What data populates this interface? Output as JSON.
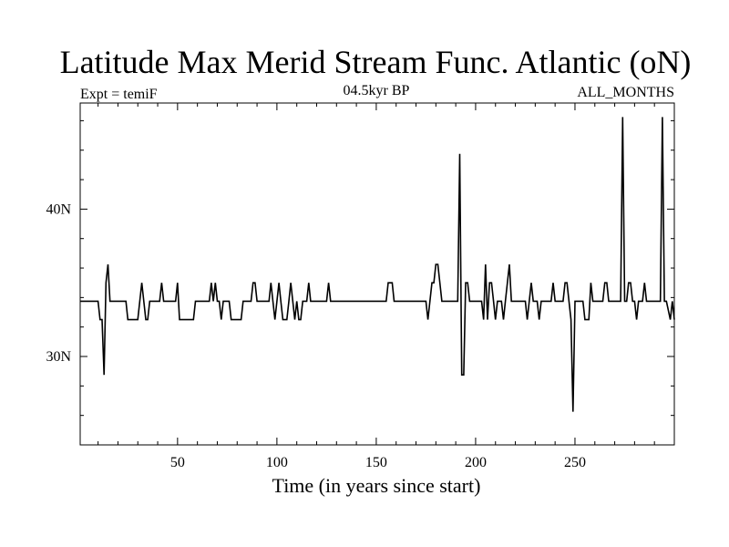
{
  "chart_data": {
    "type": "line",
    "title": "Latitude Max Merid Stream Func. Atlantic (oN)",
    "subtitle_left": "Expt = temiF",
    "subtitle_center": "04.5kyr BP",
    "subtitle_right": "ALL_MONTHS",
    "xlabel": "Time (in years since start)",
    "ylabel": "",
    "xlim": [
      1,
      300
    ],
    "ylim": [
      24,
      47.2
    ],
    "x_ticks_major": [
      50,
      100,
      150,
      200,
      250
    ],
    "x_ticks_minor_step": 10,
    "y_ticks_major": [
      30,
      40
    ],
    "y_tick_labels": [
      "30N",
      "40N"
    ],
    "y_ticks_minor_step": 2,
    "grid": false,
    "line_color": "#000000",
    "points": [
      [
        1,
        33.75
      ],
      [
        10,
        33.75
      ],
      [
        11,
        32.5
      ],
      [
        12,
        32.5
      ],
      [
        13,
        28.75
      ],
      [
        14,
        35
      ],
      [
        15,
        36.25
      ],
      [
        16,
        33.75
      ],
      [
        24,
        33.75
      ],
      [
        25,
        32.5
      ],
      [
        30,
        32.5
      ],
      [
        32,
        35
      ],
      [
        34,
        32.5
      ],
      [
        35,
        32.5
      ],
      [
        36,
        33.75
      ],
      [
        41,
        33.75
      ],
      [
        42,
        35
      ],
      [
        43,
        33.75
      ],
      [
        49,
        33.75
      ],
      [
        50,
        35
      ],
      [
        51,
        32.5
      ],
      [
        58,
        32.5
      ],
      [
        59,
        33.75
      ],
      [
        66,
        33.75
      ],
      [
        67,
        35
      ],
      [
        68,
        33.75
      ],
      [
        69,
        35
      ],
      [
        70,
        33.75
      ],
      [
        71,
        33.75
      ],
      [
        72,
        32.5
      ],
      [
        73,
        33.75
      ],
      [
        76,
        33.75
      ],
      [
        77,
        32.5
      ],
      [
        82,
        32.5
      ],
      [
        83,
        33.75
      ],
      [
        87,
        33.75
      ],
      [
        88,
        35
      ],
      [
        89,
        35
      ],
      [
        90,
        33.75
      ],
      [
        96,
        33.75
      ],
      [
        97,
        35
      ],
      [
        98,
        33.75
      ],
      [
        99,
        32.5
      ],
      [
        100,
        33.75
      ],
      [
        101,
        35
      ],
      [
        102,
        33.75
      ],
      [
        103,
        32.5
      ],
      [
        105,
        32.5
      ],
      [
        106,
        33.75
      ],
      [
        107,
        35
      ],
      [
        108,
        33.75
      ],
      [
        109,
        32.5
      ],
      [
        110,
        33.75
      ],
      [
        111,
        32.5
      ],
      [
        112,
        32.5
      ],
      [
        113,
        33.75
      ],
      [
        115,
        33.75
      ],
      [
        116,
        35
      ],
      [
        117,
        33.75
      ],
      [
        125,
        33.75
      ],
      [
        126,
        35
      ],
      [
        127,
        33.75
      ],
      [
        155,
        33.75
      ],
      [
        156,
        35
      ],
      [
        158,
        35
      ],
      [
        159,
        33.75
      ],
      [
        175,
        33.75
      ],
      [
        176,
        32.5
      ],
      [
        177,
        33.75
      ],
      [
        178,
        35
      ],
      [
        179,
        35
      ],
      [
        180,
        36.25
      ],
      [
        181,
        36.25
      ],
      [
        182,
        35
      ],
      [
        183,
        33.75
      ],
      [
        191,
        33.75
      ],
      [
        192,
        43.75
      ],
      [
        193,
        28.75
      ],
      [
        194,
        28.75
      ],
      [
        195,
        35
      ],
      [
        196,
        35
      ],
      [
        197,
        33.75
      ],
      [
        203,
        33.75
      ],
      [
        204,
        32.5
      ],
      [
        205,
        36.25
      ],
      [
        206,
        32.5
      ],
      [
        207,
        35
      ],
      [
        208,
        35
      ],
      [
        209,
        33.75
      ],
      [
        210,
        32.5
      ],
      [
        211,
        33.75
      ],
      [
        213,
        33.75
      ],
      [
        214,
        32.5
      ],
      [
        215,
        33.75
      ],
      [
        216,
        35
      ],
      [
        217,
        36.25
      ],
      [
        218,
        33.75
      ],
      [
        225,
        33.75
      ],
      [
        226,
        32.5
      ],
      [
        227,
        33.75
      ],
      [
        228,
        35
      ],
      [
        229,
        33.75
      ],
      [
        231,
        33.75
      ],
      [
        232,
        32.5
      ],
      [
        233,
        33.75
      ],
      [
        238,
        33.75
      ],
      [
        239,
        35
      ],
      [
        240,
        33.75
      ],
      [
        244,
        33.75
      ],
      [
        245,
        35
      ],
      [
        246,
        35
      ],
      [
        247,
        33.75
      ],
      [
        248,
        32.5
      ],
      [
        249,
        26.25
      ],
      [
        250,
        33.75
      ],
      [
        254,
        33.75
      ],
      [
        255,
        32.5
      ],
      [
        257,
        32.5
      ],
      [
        258,
        35
      ],
      [
        259,
        33.75
      ],
      [
        264,
        33.75
      ],
      [
        265,
        35
      ],
      [
        266,
        35
      ],
      [
        267,
        33.75
      ],
      [
        273,
        33.75
      ],
      [
        274,
        46.25
      ],
      [
        275,
        33.75
      ],
      [
        276,
        33.75
      ],
      [
        277,
        35
      ],
      [
        278,
        35
      ],
      [
        279,
        33.75
      ],
      [
        280,
        33.75
      ],
      [
        281,
        32.5
      ],
      [
        282,
        33.75
      ],
      [
        284,
        33.75
      ],
      [
        285,
        35
      ],
      [
        286,
        33.75
      ],
      [
        293,
        33.75
      ],
      [
        294,
        46.25
      ],
      [
        295,
        33.75
      ],
      [
        296,
        33.75
      ],
      [
        298,
        32.5
      ],
      [
        299,
        33.75
      ],
      [
        300,
        32.5
      ]
    ]
  }
}
